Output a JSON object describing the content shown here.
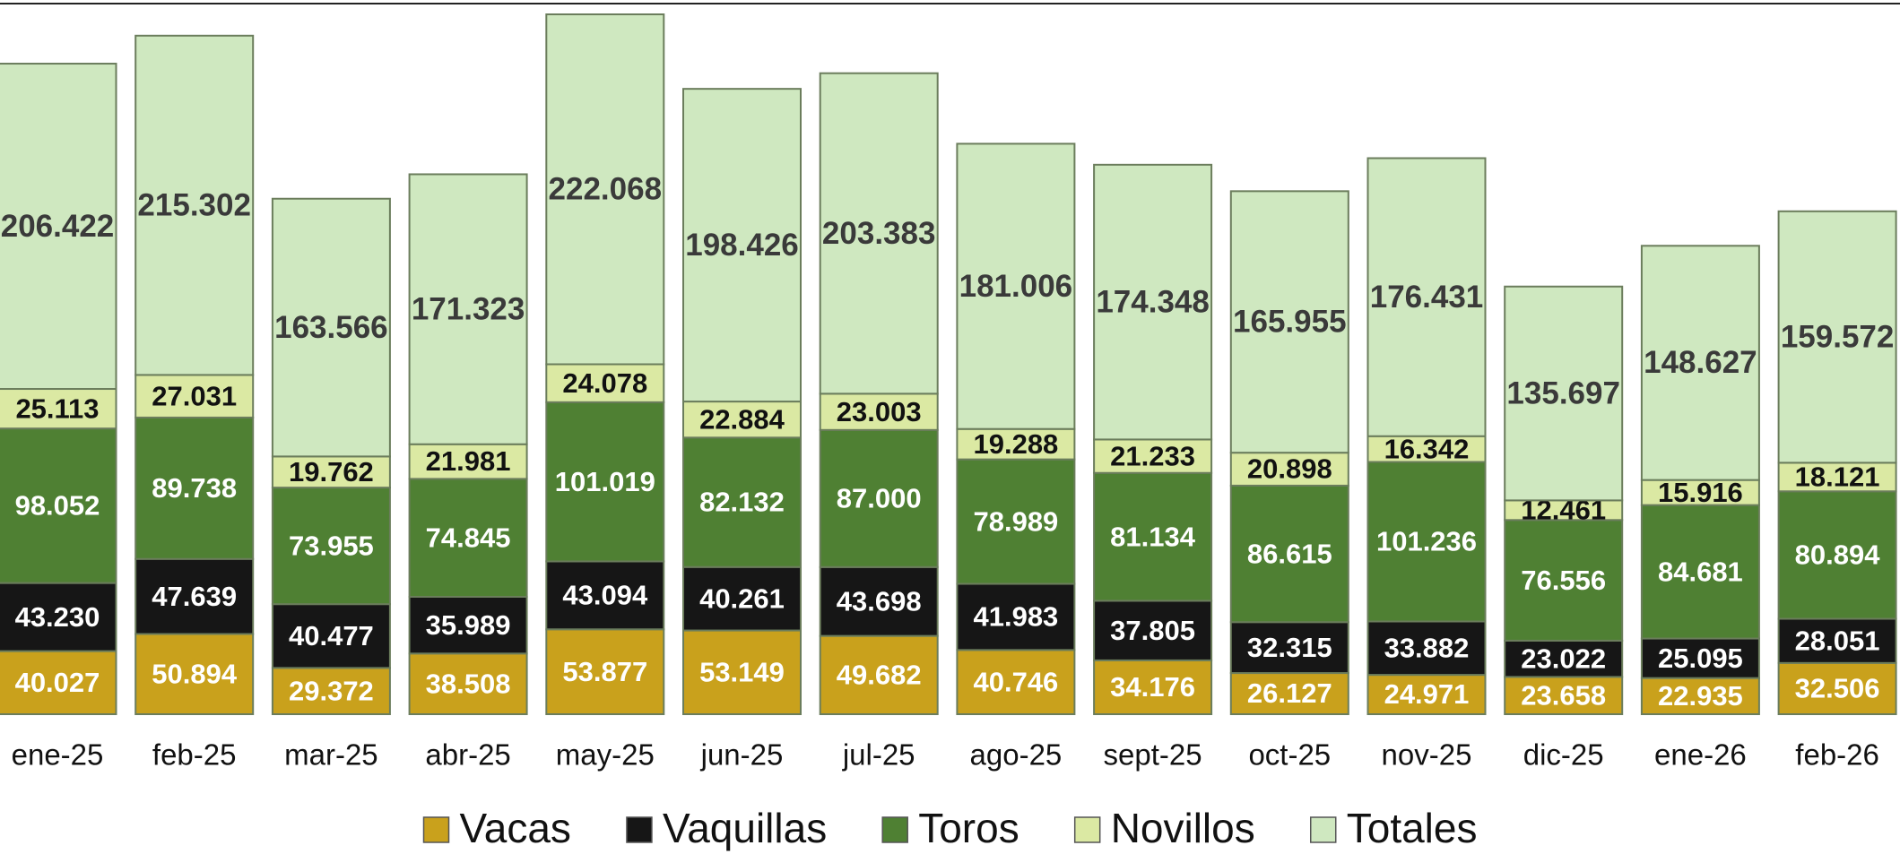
{
  "chart_data": {
    "type": "stacked_bar",
    "categories": [
      "ene-25",
      "feb-25",
      "mar-25",
      "abr-25",
      "may-25",
      "jun-25",
      "jul-25",
      "ago-25",
      "sept-25",
      "oct-25",
      "nov-25",
      "dic-25",
      "ene-26",
      "feb-26"
    ],
    "series": [
      {
        "name": "Vacas",
        "color": "#c9a11c",
        "values": [
          40027,
          50894,
          29372,
          38508,
          53877,
          53149,
          49682,
          40746,
          34176,
          26127,
          24971,
          23658,
          22935,
          32506
        ],
        "value_labels": [
          "40.027",
          "50.894",
          "29.372",
          "38.508",
          "53.877",
          "53.149",
          "49.682",
          "40.746",
          "34.176",
          "26.127",
          "24.971",
          "23.658",
          "22.935",
          "32.506"
        ]
      },
      {
        "name": "Vaquillas",
        "color": "#161616",
        "values": [
          43230,
          47639,
          40477,
          35989,
          43094,
          40261,
          43698,
          41983,
          37805,
          32315,
          33882,
          23022,
          25095,
          28051
        ],
        "value_labels": [
          "43.230",
          "47.639",
          "40.477",
          "35.989",
          "43.094",
          "40.261",
          "43.698",
          "41.983",
          "37.805",
          "32.315",
          "33.882",
          "23.022",
          "25.095",
          "28.051"
        ]
      },
      {
        "name": "Toros",
        "color": "#4f8033",
        "values": [
          98052,
          89738,
          73955,
          74845,
          101019,
          82132,
          87000,
          78989,
          81134,
          86615,
          101236,
          76556,
          84681,
          80894
        ],
        "value_labels": [
          "98.052",
          "89.738",
          "73.955",
          "74.845",
          "101.019",
          "82.132",
          "87.000",
          "78.989",
          "81.134",
          "86.615",
          "101.236",
          "76.556",
          "84.681",
          "80.894"
        ]
      },
      {
        "name": "Novillos",
        "color": "#dbe9a3",
        "values": [
          25113,
          27031,
          19762,
          21981,
          24078,
          22884,
          23003,
          19288,
          21233,
          20898,
          16342,
          12461,
          15916,
          18121
        ],
        "value_labels": [
          "25.113",
          "27.031",
          "19.762",
          "21.981",
          "24.078",
          "22.884",
          "23.003",
          "19.288",
          "21.233",
          "20.898",
          "16.342",
          "12.461",
          "15.916",
          "18.121"
        ]
      },
      {
        "name": "Totales",
        "color": "#cfe8c0",
        "values": [
          206422,
          215302,
          163566,
          171323,
          222068,
          198426,
          203383,
          181006,
          174348,
          165955,
          176431,
          135697,
          148627,
          159572
        ],
        "value_labels": [
          "206.422",
          "215.302",
          "163.566",
          "171.323",
          "222.068",
          "198.426",
          "203.383",
          "181.006",
          "174.348",
          "165.955",
          "176.431",
          "135.697",
          "148.627",
          "159.572"
        ]
      }
    ]
  }
}
